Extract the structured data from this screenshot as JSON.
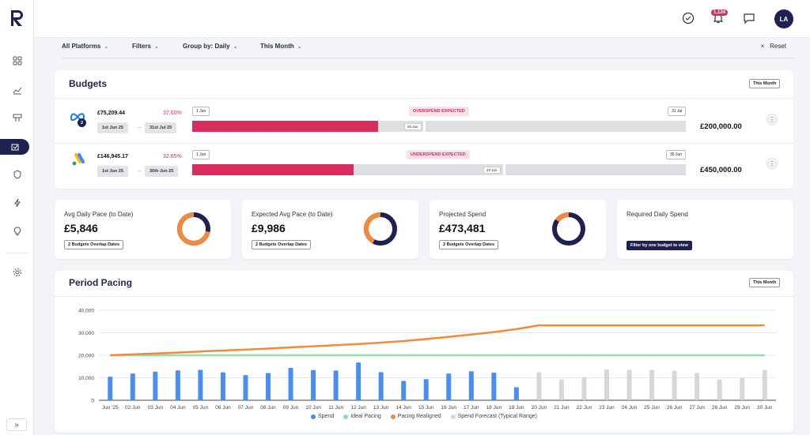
{
  "app": {
    "logo_letter": "R"
  },
  "topbar": {
    "notifications_count": "1,124",
    "avatar_initials": "LA"
  },
  "sidebar": {
    "items": [
      {
        "icon": "grid-icon"
      },
      {
        "icon": "trend-chart-icon"
      },
      {
        "icon": "billboard-icon"
      },
      {
        "icon": "budget-icon",
        "active": true
      },
      {
        "icon": "shield-icon"
      },
      {
        "icon": "lightning-icon"
      },
      {
        "icon": "lightbulb-icon"
      },
      {
        "icon": "settings-icon"
      }
    ],
    "expand_label": "»"
  },
  "filters": {
    "platforms": "All Platforms",
    "filters": "Filters",
    "group_by": "Group by: Daily",
    "period": "This Month",
    "reset": "Reset",
    "reset_icon": "×"
  },
  "budgets": {
    "title": "Budgets",
    "period_btn": "This Month",
    "rows": [
      {
        "platform": "meta",
        "badge": "2",
        "amount": "£75,209.44",
        "percent": "37.60%",
        "start_date": "1st Jun 25",
        "end_date": "31st Jul 25",
        "start_flag": "1 Jun",
        "end_flag": "31 Jul",
        "status": "OVERSPEND EXPECTED",
        "progress": 0.376,
        "today_label": "20 Jun",
        "total": "£200,000.00"
      },
      {
        "platform": "google-ads",
        "amount": "£146,945.17",
        "percent": "32.65%",
        "start_date": "1st Jun 25",
        "end_date": "30th Jun 25",
        "start_flag": "1 Jun",
        "end_flag": "30 Jun",
        "status": "UNDERSPEND EXPECTED",
        "progress": 0.3265,
        "today_label": "20 Jun",
        "total": "£450,000.00"
      }
    ]
  },
  "kpis": [
    {
      "label": "Avg Daily Pace (to Date)",
      "value": "£5,846",
      "chip": "2 Budgets Overlap Dates",
      "donut_orange": 0.72
    },
    {
      "label": "Expected Avg Pace (to Date)",
      "value": "£9,986",
      "chip": "2 Budgets Overlap Dates",
      "donut_orange": 0.42
    },
    {
      "label": "Projected Spend",
      "value": "£473,481",
      "chip": "2 Budgets Overlap Dates",
      "donut_orange": 0.15
    },
    {
      "label": "Required Daily Spend",
      "action": "Filter by one budget to view"
    }
  ],
  "pacing": {
    "title": "Period Pacing",
    "period_btn": "This Month",
    "legend": [
      "Spend",
      "Ideal Pacing",
      "Pacing Realigned",
      "Spend Forecast (Typical Range)"
    ],
    "colors": {
      "spend": "#4a8ef0",
      "ideal": "#8fdfa8",
      "realigned": "#ef8a3e",
      "forecast": "#d5d7dc"
    }
  },
  "chart_data": {
    "type": "bar",
    "ylim": [
      0,
      40000
    ],
    "yticks": [
      "0",
      "10,000",
      "20,000",
      "30,000",
      "40,000"
    ],
    "categories": [
      "Jun '25",
      "02 Jun",
      "03 Jun",
      "04 Jun",
      "05 Jun",
      "06 Jun",
      "07 Jun",
      "08 Jun",
      "09 Jun",
      "10 Jun",
      "11 Jun",
      "12 Jun",
      "13 Jun",
      "14 Jun",
      "15 Jun",
      "16 Jun",
      "17 Jun",
      "18 Jun",
      "19 Jun",
      "20 Jun",
      "21 Jun",
      "22 Jun",
      "23 Jun",
      "24 Jun",
      "25 Jun",
      "26 Jun",
      "27 Jun",
      "28 Jun",
      "29 Jun",
      "30 Jun"
    ],
    "series": [
      {
        "name": "Spend",
        "values": [
          10500,
          11900,
          12700,
          13300,
          13500,
          12400,
          11200,
          12100,
          14400,
          13400,
          13200,
          16800,
          12500,
          8600,
          9400,
          11900,
          12900,
          12300,
          5800,
          null,
          null,
          null,
          null,
          null,
          null,
          null,
          null,
          null,
          null,
          null
        ]
      },
      {
        "name": "Spend Forecast (Typical Range)",
        "values": [
          null,
          null,
          null,
          null,
          null,
          null,
          null,
          null,
          null,
          null,
          null,
          null,
          null,
          null,
          null,
          null,
          null,
          null,
          null,
          12500,
          9300,
          10300,
          13700,
          13600,
          13600,
          13200,
          12200,
          9200,
          10000,
          13500
        ]
      },
      {
        "name": "Ideal Pacing",
        "values": [
          20000,
          20000,
          20000,
          20000,
          20000,
          20000,
          20000,
          20000,
          20000,
          20000,
          20000,
          20000,
          20000,
          20000,
          20000,
          20000,
          20000,
          20000,
          20000,
          20000,
          20000,
          20000,
          20000,
          20000,
          20000,
          20000,
          20000,
          20000,
          20000,
          20000
        ]
      },
      {
        "name": "Pacing Realigned",
        "values": [
          20000,
          20400,
          20800,
          21200,
          21700,
          22100,
          22500,
          23000,
          23500,
          24000,
          24500,
          25000,
          25600,
          26300,
          27200,
          28200,
          29200,
          30300,
          31600,
          33300,
          33300,
          33300,
          33300,
          33300,
          33300,
          33300,
          33300,
          33300,
          33300,
          33300
        ]
      }
    ]
  }
}
